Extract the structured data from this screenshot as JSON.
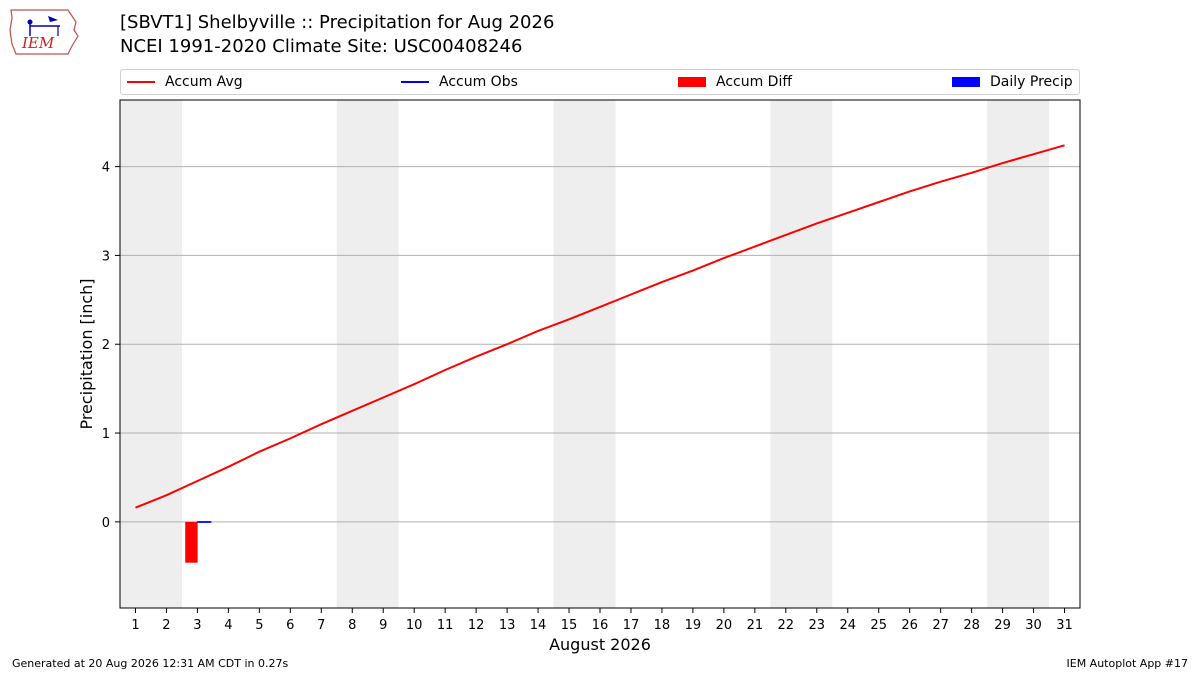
{
  "header": {
    "title_line1": "[SBVT1] Shelbyville :: Precipitation for Aug 2026",
    "title_line2": "NCEI 1991-2020 Climate Site: USC00408246"
  },
  "logo": {
    "text": "IEM",
    "icon": "iem-iowa-logo"
  },
  "legend": {
    "accum_avg": "Accum Avg",
    "accum_obs": "Accum Obs",
    "accum_diff": "Accum Diff",
    "daily_precip": "Daily Precip"
  },
  "colors": {
    "accum_avg": "#ff0000",
    "accum_obs": "#0000ff",
    "accum_diff": "#ff0000",
    "daily_precip": "#0000ff",
    "weekend_band": "#eeeeee",
    "grid": "#b0b0b0"
  },
  "chart_data": {
    "type": "line",
    "xlabel": "August 2026",
    "ylabel": "Precipitation [inch]",
    "x": [
      1,
      2,
      3,
      4,
      5,
      6,
      7,
      8,
      9,
      10,
      11,
      12,
      13,
      14,
      15,
      16,
      17,
      18,
      19,
      20,
      21,
      22,
      23,
      24,
      25,
      26,
      27,
      28,
      29,
      30,
      31
    ],
    "xlim": [
      0.5,
      31.5
    ],
    "ylim": [
      -0.97,
      4.75
    ],
    "yticks": [
      0,
      1,
      2,
      3,
      4
    ],
    "grid": "horizontal",
    "weekend_bands": [
      [
        1,
        2
      ],
      [
        8,
        9
      ],
      [
        15,
        16
      ],
      [
        22,
        23
      ],
      [
        29,
        30
      ]
    ],
    "series": [
      {
        "name": "Accum Avg",
        "kind": "line",
        "x": [
          1,
          2,
          3,
          4,
          5,
          6,
          7,
          8,
          9,
          10,
          11,
          12,
          13,
          14,
          15,
          16,
          17,
          18,
          19,
          20,
          21,
          22,
          23,
          24,
          25,
          26,
          27,
          28,
          29,
          30,
          31
        ],
        "values": [
          0.16,
          0.3,
          0.46,
          0.62,
          0.79,
          0.94,
          1.1,
          1.25,
          1.4,
          1.55,
          1.71,
          1.86,
          2.0,
          2.15,
          2.28,
          2.42,
          2.56,
          2.7,
          2.83,
          2.97,
          3.1,
          3.23,
          3.36,
          3.48,
          3.6,
          3.72,
          3.83,
          3.93,
          4.04,
          4.14,
          4.24
        ]
      },
      {
        "name": "Accum Obs",
        "kind": "line",
        "x": [
          3
        ],
        "values": [
          0.0
        ]
      },
      {
        "name": "Accum Diff",
        "kind": "bar",
        "x": [
          3
        ],
        "values": [
          -0.46
        ]
      },
      {
        "name": "Daily Precip",
        "kind": "bar",
        "x": [
          3
        ],
        "values": [
          0.0
        ]
      }
    ]
  },
  "footer": {
    "left": "Generated at 20 Aug 2026 12:31 AM CDT in 0.27s",
    "right": "IEM Autoplot App #17"
  }
}
